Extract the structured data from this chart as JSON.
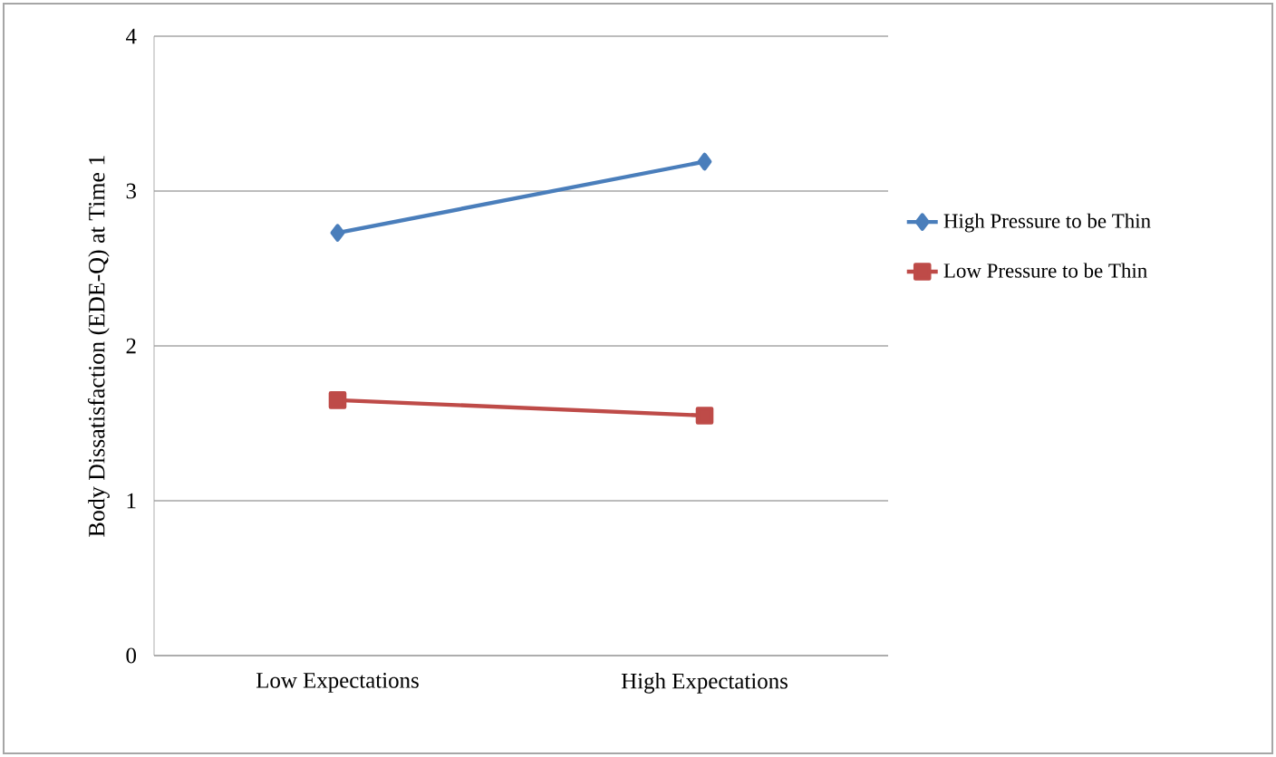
{
  "chart_data": {
    "type": "line",
    "ylabel": "Body Dissatisfaction (EDE-Q) at Time 1",
    "categories": [
      "Low Expectations",
      "High Expectations"
    ],
    "series": [
      {
        "name": "High Pressure to be Thin",
        "color": "#4a7ebb",
        "marker": "diamond",
        "values": [
          2.73,
          3.19
        ]
      },
      {
        "name": "Low Pressure to be Thin",
        "color": "#be4b48",
        "marker": "square",
        "values": [
          1.65,
          1.55
        ]
      }
    ],
    "ylim": [
      0,
      4
    ],
    "yticks": [
      0,
      1,
      2,
      3,
      4
    ],
    "grid": "y",
    "legend": "right",
    "line_style": "solid"
  }
}
